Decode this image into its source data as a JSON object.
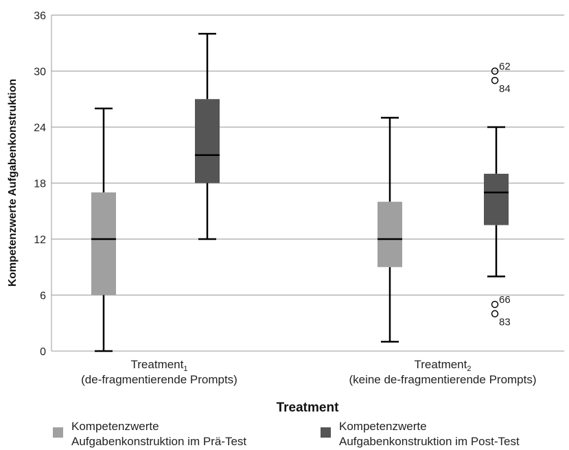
{
  "chart_data": {
    "type": "boxplot",
    "ylabel": "Kompetenzwerte Aufgabenkonstruktion",
    "xlabel": "Treatment",
    "ylim": [
      0,
      36
    ],
    "yticks": [
      0,
      6,
      12,
      18,
      24,
      30,
      36
    ],
    "grid": true,
    "categories": [
      {
        "name": "Treatment",
        "subscript": "1",
        "line2": "(de-fragmentierende Prompts)"
      },
      {
        "name": "Treatment",
        "subscript": "2",
        "line2": "(keine de-fragmentierende Prompts)"
      }
    ],
    "series": [
      {
        "name": "Kompetenzwerte Aufgabenkonstruktion im Prä-Test",
        "line1": "Kompetenzwerte",
        "line2": "Aufgabenkonstruktion im Prä-Test",
        "color": "#a0a0a0",
        "boxes": [
          {
            "min": 0,
            "q1": 6,
            "median": 12,
            "q3": 17,
            "max": 26,
            "outliers": []
          },
          {
            "min": 1,
            "q1": 9,
            "median": 12,
            "q3": 16,
            "max": 25,
            "outliers": []
          }
        ]
      },
      {
        "name": "Kompetenzwerte Aufgabenkonstruktion im Post-Test",
        "line1": "Kompetenzwerte",
        "line2": "Aufgabenkonstruktion im Post-Test",
        "color": "#555555",
        "boxes": [
          {
            "min": 12,
            "q1": 18,
            "median": 21,
            "q3": 27,
            "max": 34,
            "outliers": []
          },
          {
            "min": 8,
            "q1": 13.5,
            "median": 17,
            "q3": 19,
            "max": 24,
            "outliers": [
              {
                "value": 30,
                "label": "62"
              },
              {
                "value": 29,
                "label": "84"
              },
              {
                "value": 5,
                "label": "66"
              },
              {
                "value": 4,
                "label": "83"
              }
            ]
          }
        ]
      }
    ]
  }
}
